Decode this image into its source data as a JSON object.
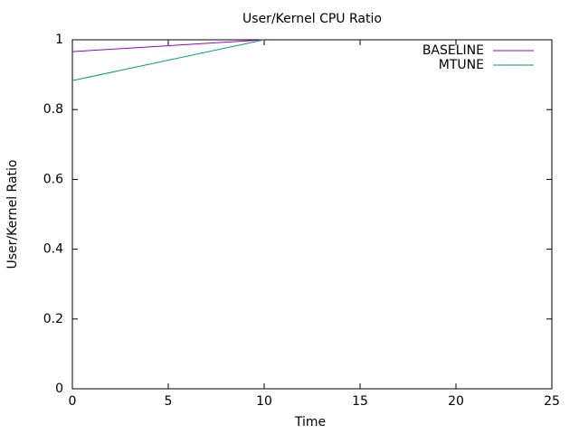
{
  "chart_data": {
    "type": "line",
    "title": "User/Kernel CPU Ratio",
    "x_label": "Time",
    "y_label": "User/Kernel Ratio",
    "x": [
      0,
      10
    ],
    "series": [
      {
        "name": "BASELINE",
        "color": "#9400d3",
        "values": [
          0.966,
          1
        ]
      },
      {
        "name": "MTUNE",
        "color": "#009e73",
        "values": [
          0.883,
          1
        ]
      }
    ],
    "xlim": [
      0,
      25
    ],
    "xticks": [
      0,
      5,
      10,
      15,
      20,
      25
    ],
    "ylim": [
      0,
      1
    ],
    "yticks": [
      0,
      0.2,
      0.4,
      0.6,
      0.8,
      1
    ],
    "grid": false,
    "legend": "top-right"
  }
}
